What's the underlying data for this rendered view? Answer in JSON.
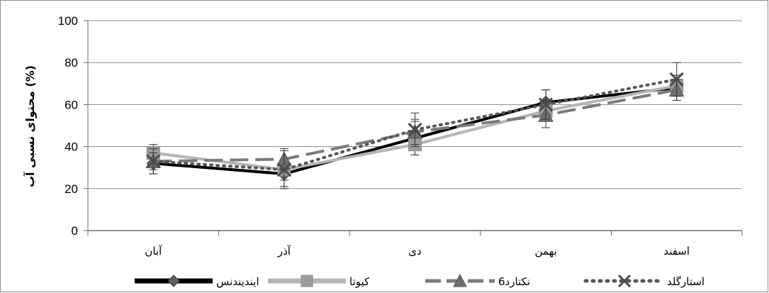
{
  "chart_data": {
    "type": "line",
    "categories": [
      "آبان",
      "آذر",
      "دی",
      "بهمن",
      "اسفند"
    ],
    "ylabel": "محتوای نسبی آب (%)",
    "xlabel": "",
    "ylim": [
      0,
      100
    ],
    "yticks": [
      0,
      20,
      40,
      60,
      80,
      100
    ],
    "grid": true,
    "legend_position": "bottom",
    "series": [
      {
        "name": "ایندیندنس",
        "values": [
          32,
          27,
          44,
          61,
          68
        ],
        "errors": [
          5,
          6,
          8,
          6,
          6
        ],
        "color": "#000000",
        "dash": "solid",
        "marker": "diamond"
      },
      {
        "name": "کیوتا",
        "values": [
          37,
          29,
          41,
          57,
          69
        ],
        "errors": [
          4,
          5,
          5,
          5,
          5
        ],
        "color": "#b5b5b5",
        "dash": "solid",
        "marker": "square"
      },
      {
        "name": "نکتارد6",
        "values": [
          33,
          34,
          47,
          55,
          67
        ],
        "errors": [
          4,
          5,
          6,
          6,
          5
        ],
        "color": "#7a7a7a",
        "dash": "long-dash",
        "marker": "triangle"
      },
      {
        "name": "استارگلد",
        "values": [
          33,
          29,
          48,
          60,
          72
        ],
        "errors": [
          6,
          9,
          8,
          7,
          8
        ],
        "color": "#555555",
        "dash": "dotted",
        "marker": "x"
      }
    ]
  }
}
